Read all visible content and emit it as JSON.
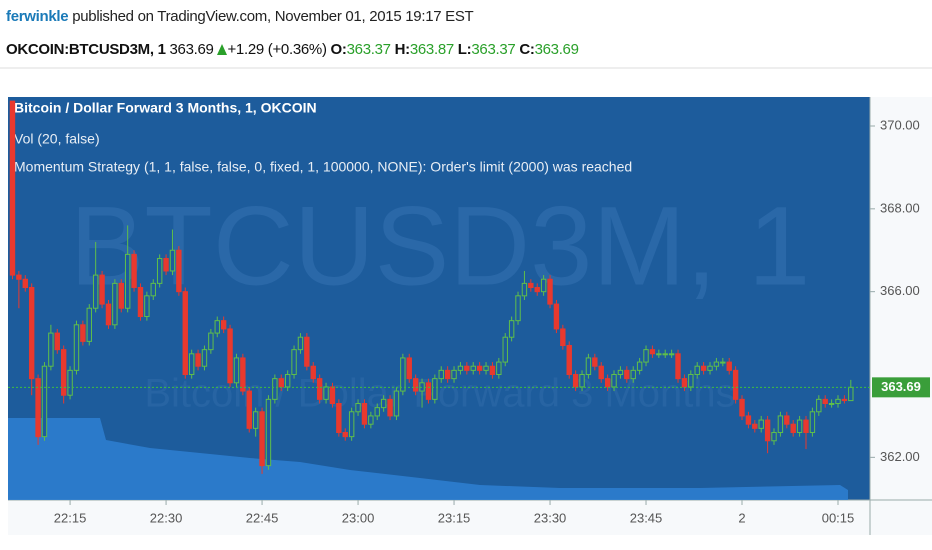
{
  "header": {
    "user": "ferwinkle",
    "published": "published on TradingView.com, November 01, 2015 19:17 EST"
  },
  "quote": {
    "symbol": "OKCOIN:BTCUSD3M, 1",
    "price": "363.69",
    "change": "+1.29 (+0.36%)",
    "open_label": "O:",
    "open": "363.37",
    "high_label": "H:",
    "high": "363.87",
    "low_label": "L:",
    "low": "363.37",
    "close_label": "C:",
    "close": "363.69"
  },
  "chart_data": {
    "type": "candlestick",
    "legend": [
      "Bitcoin / Dollar Forward 3 Months, 1, OKCOIN",
      "Vol (20, false)",
      "Momentum Strategy (1, 1, false, false, 0, fixed, 1, 100000, NONE): Order's limit (2000) was reached"
    ],
    "watermark": "BTCUSD3M, 1",
    "watermark_sub": "Bitcoin / Dollar Forward 3 Months",
    "up_color": "#5fbf4a",
    "down_color": "#e8392e",
    "background": "#1d5c9c",
    "x": [
      6,
      7,
      8,
      9,
      10,
      11,
      12,
      13,
      14,
      15,
      16,
      17,
      18,
      19,
      20,
      21,
      22,
      23,
      24,
      25,
      26,
      27,
      28,
      29,
      30,
      31,
      32,
      33,
      34,
      35,
      36,
      37,
      38,
      39,
      40,
      41,
      42,
      43,
      44,
      45,
      46,
      47,
      48,
      49,
      50,
      51,
      52,
      53,
      54,
      55,
      56,
      57,
      58,
      59,
      60,
      61,
      62,
      63,
      64,
      65,
      66,
      67,
      68,
      69,
      70,
      71,
      72,
      73,
      74,
      75,
      76,
      77,
      78,
      79,
      80,
      81,
      82,
      83,
      84,
      85,
      86,
      87,
      88,
      89,
      90,
      91,
      92,
      93,
      94,
      95,
      96,
      97,
      98,
      99,
      100,
      101,
      102,
      103,
      104,
      105,
      106,
      107,
      108,
      109,
      110,
      111,
      112,
      113,
      114,
      115,
      116,
      117,
      118,
      119,
      120,
      121,
      122,
      123,
      124,
      125,
      126,
      127,
      128,
      129,
      130,
      131,
      132,
      133,
      134,
      135,
      136,
      137
    ],
    "open": [
      370.6,
      366.4,
      366.3,
      366.1,
      363.9,
      362.5,
      364.2,
      365.0,
      364.6,
      363.5,
      364.1,
      365.2,
      364.8,
      365.6,
      366.4,
      365.7,
      365.2,
      366.2,
      365.6,
      366.9,
      366.1,
      365.4,
      365.9,
      366.2,
      366.8,
      366.5,
      367.0,
      366.0,
      364.0,
      364.5,
      364.2,
      364.6,
      365.0,
      365.3,
      365.1,
      363.8,
      364.4,
      363.6,
      362.7,
      363.1,
      361.8,
      363.4,
      363.9,
      363.7,
      364.0,
      364.6,
      364.9,
      364.2,
      363.9,
      363.4,
      363.7,
      363.3,
      362.6,
      362.5,
      363.1,
      363.3,
      362.8,
      363.0,
      363.2,
      363.4,
      363.0,
      363.6,
      364.4,
      363.9,
      363.6,
      363.8,
      363.4,
      363.9,
      364.1,
      363.9,
      364.1,
      364.2,
      364.1,
      364.2,
      364.1,
      364.2,
      364.0,
      364.3,
      364.9,
      365.3,
      365.9,
      366.2,
      366.1,
      366.0,
      366.3,
      365.7,
      365.1,
      364.7,
      364.0,
      363.7,
      364.0,
      364.4,
      364.2,
      363.9,
      363.7,
      364.0,
      364.1,
      363.9,
      364.1,
      364.3,
      364.6,
      364.5,
      364.5,
      364.5,
      364.5,
      363.9,
      363.7,
      364.0,
      364.2,
      364.1,
      364.2,
      364.3,
      364.3,
      364.1,
      363.4,
      363.0,
      362.8,
      362.7,
      362.9,
      362.4,
      362.6,
      363.0,
      362.8,
      362.6,
      362.9,
      362.6,
      363.1,
      363.4,
      363.3,
      363.3,
      363.4,
      363.37
    ],
    "high": [
      370.6,
      366.5,
      366.4,
      366.2,
      364.0,
      364.3,
      365.2,
      365.1,
      364.7,
      364.2,
      365.3,
      365.3,
      365.7,
      367.2,
      366.5,
      365.8,
      366.3,
      366.3,
      367.6,
      367.0,
      366.2,
      366.0,
      366.3,
      366.9,
      366.9,
      367.5,
      367.1,
      366.1,
      364.6,
      364.6,
      364.7,
      365.1,
      365.4,
      365.4,
      365.2,
      364.5,
      364.5,
      363.7,
      363.2,
      363.2,
      363.5,
      364.0,
      364.0,
      364.1,
      364.7,
      365.0,
      365.0,
      364.3,
      364.0,
      363.8,
      363.8,
      363.4,
      362.7,
      363.2,
      363.4,
      363.4,
      363.1,
      363.3,
      363.5,
      363.5,
      363.7,
      364.5,
      364.5,
      364.0,
      363.9,
      363.9,
      364.0,
      364.2,
      364.2,
      364.2,
      364.3,
      364.3,
      364.3,
      364.3,
      364.3,
      364.3,
      364.4,
      365.0,
      365.4,
      366.0,
      366.5,
      366.3,
      366.2,
      366.4,
      366.4,
      365.8,
      365.2,
      364.8,
      364.1,
      364.1,
      364.5,
      364.5,
      364.3,
      364.0,
      364.1,
      364.2,
      364.2,
      364.2,
      364.4,
      364.7,
      364.7,
      364.6,
      364.6,
      364.6,
      364.6,
      364.0,
      364.1,
      364.3,
      364.3,
      364.3,
      364.4,
      364.4,
      364.4,
      364.2,
      363.5,
      363.1,
      362.9,
      363.0,
      363.0,
      362.7,
      363.1,
      363.1,
      362.9,
      363.0,
      363.0,
      363.2,
      363.5,
      363.5,
      363.4,
      363.5,
      363.5,
      363.87
    ],
    "low": [
      366.3,
      365.6,
      366.0,
      363.5,
      362.3,
      362.4,
      364.1,
      364.5,
      363.3,
      363.4,
      364.0,
      364.7,
      364.7,
      365.5,
      365.6,
      365.1,
      365.1,
      365.5,
      365.5,
      366.0,
      365.3,
      365.3,
      365.8,
      366.1,
      366.4,
      366.4,
      365.9,
      363.9,
      363.9,
      364.1,
      364.1,
      364.5,
      364.9,
      365.0,
      363.7,
      363.7,
      363.5,
      362.6,
      362.5,
      361.6,
      361.7,
      363.3,
      363.6,
      363.6,
      363.9,
      364.5,
      364.1,
      363.8,
      363.3,
      363.3,
      363.2,
      362.5,
      362.4,
      362.4,
      363.0,
      362.7,
      362.7,
      362.9,
      363.1,
      362.9,
      362.9,
      363.5,
      363.8,
      363.5,
      363.2,
      363.3,
      363.3,
      363.8,
      363.8,
      363.8,
      364.0,
      364.0,
      364.0,
      364.0,
      364.0,
      363.9,
      363.9,
      364.2,
      364.8,
      365.2,
      365.8,
      366.0,
      365.9,
      365.9,
      365.6,
      365.0,
      364.6,
      363.9,
      363.6,
      363.6,
      363.9,
      364.1,
      363.8,
      363.6,
      363.6,
      363.9,
      363.8,
      363.8,
      364.0,
      364.2,
      364.4,
      364.4,
      364.4,
      364.4,
      363.8,
      363.6,
      363.6,
      363.9,
      364.0,
      364.0,
      364.1,
      364.2,
      364.0,
      363.3,
      362.9,
      362.7,
      362.6,
      362.6,
      362.1,
      362.3,
      362.5,
      362.7,
      362.5,
      362.5,
      362.2,
      362.5,
      363.0,
      363.2,
      363.2,
      363.2,
      363.3,
      363.37
    ],
    "close": [
      366.4,
      366.3,
      366.1,
      363.9,
      362.5,
      364.2,
      365.0,
      364.6,
      363.5,
      364.1,
      365.2,
      364.8,
      365.6,
      366.4,
      365.7,
      365.2,
      366.2,
      365.6,
      366.9,
      366.1,
      365.4,
      365.9,
      366.2,
      366.8,
      366.5,
      367.0,
      366.0,
      364.0,
      364.5,
      364.2,
      364.6,
      365.0,
      365.3,
      365.1,
      363.8,
      364.4,
      363.6,
      362.7,
      363.1,
      361.8,
      363.4,
      363.9,
      363.7,
      364.0,
      364.6,
      364.9,
      364.2,
      363.9,
      363.4,
      363.7,
      363.3,
      362.6,
      362.5,
      363.1,
      363.3,
      362.8,
      363.0,
      363.2,
      363.4,
      363.0,
      363.6,
      364.4,
      363.9,
      363.6,
      363.8,
      363.4,
      363.9,
      364.1,
      363.9,
      364.1,
      364.2,
      364.1,
      364.2,
      364.1,
      364.2,
      364.0,
      364.3,
      364.9,
      365.3,
      365.9,
      366.2,
      366.1,
      366.0,
      366.3,
      365.7,
      365.1,
      364.7,
      364.0,
      363.7,
      364.0,
      364.4,
      364.2,
      363.9,
      363.7,
      364.0,
      364.1,
      363.9,
      364.1,
      364.3,
      364.6,
      364.5,
      364.5,
      364.5,
      364.5,
      363.9,
      363.7,
      364.0,
      364.2,
      364.1,
      364.2,
      364.3,
      364.3,
      364.1,
      363.4,
      363.0,
      362.8,
      362.7,
      362.9,
      362.4,
      362.6,
      363.0,
      362.8,
      362.6,
      362.9,
      362.6,
      363.1,
      363.4,
      363.3,
      363.3,
      363.4,
      363.37,
      363.69
    ],
    "xlim": [
      5.3,
      140
    ],
    "xticks": [
      {
        "value": 15,
        "label": "22:15"
      },
      {
        "value": 30,
        "label": "22:30"
      },
      {
        "value": 45,
        "label": "22:45"
      },
      {
        "value": 60,
        "label": "23:00"
      },
      {
        "value": 75,
        "label": "23:15"
      },
      {
        "value": 90,
        "label": "23:30"
      },
      {
        "value": 105,
        "label": "23:45"
      },
      {
        "value": 120,
        "label": "2"
      },
      {
        "value": 135,
        "label": "00:15"
      }
    ],
    "ylim": [
      360.97,
      370.7
    ],
    "yticks": [
      {
        "value": 362,
        "label": "362.00"
      },
      {
        "value": 366,
        "label": "366.00"
      },
      {
        "value": 368,
        "label": "368.00"
      },
      {
        "value": 370,
        "label": "370.00"
      }
    ],
    "last_price": {
      "value": 363.69,
      "label": "363.69"
    }
  }
}
